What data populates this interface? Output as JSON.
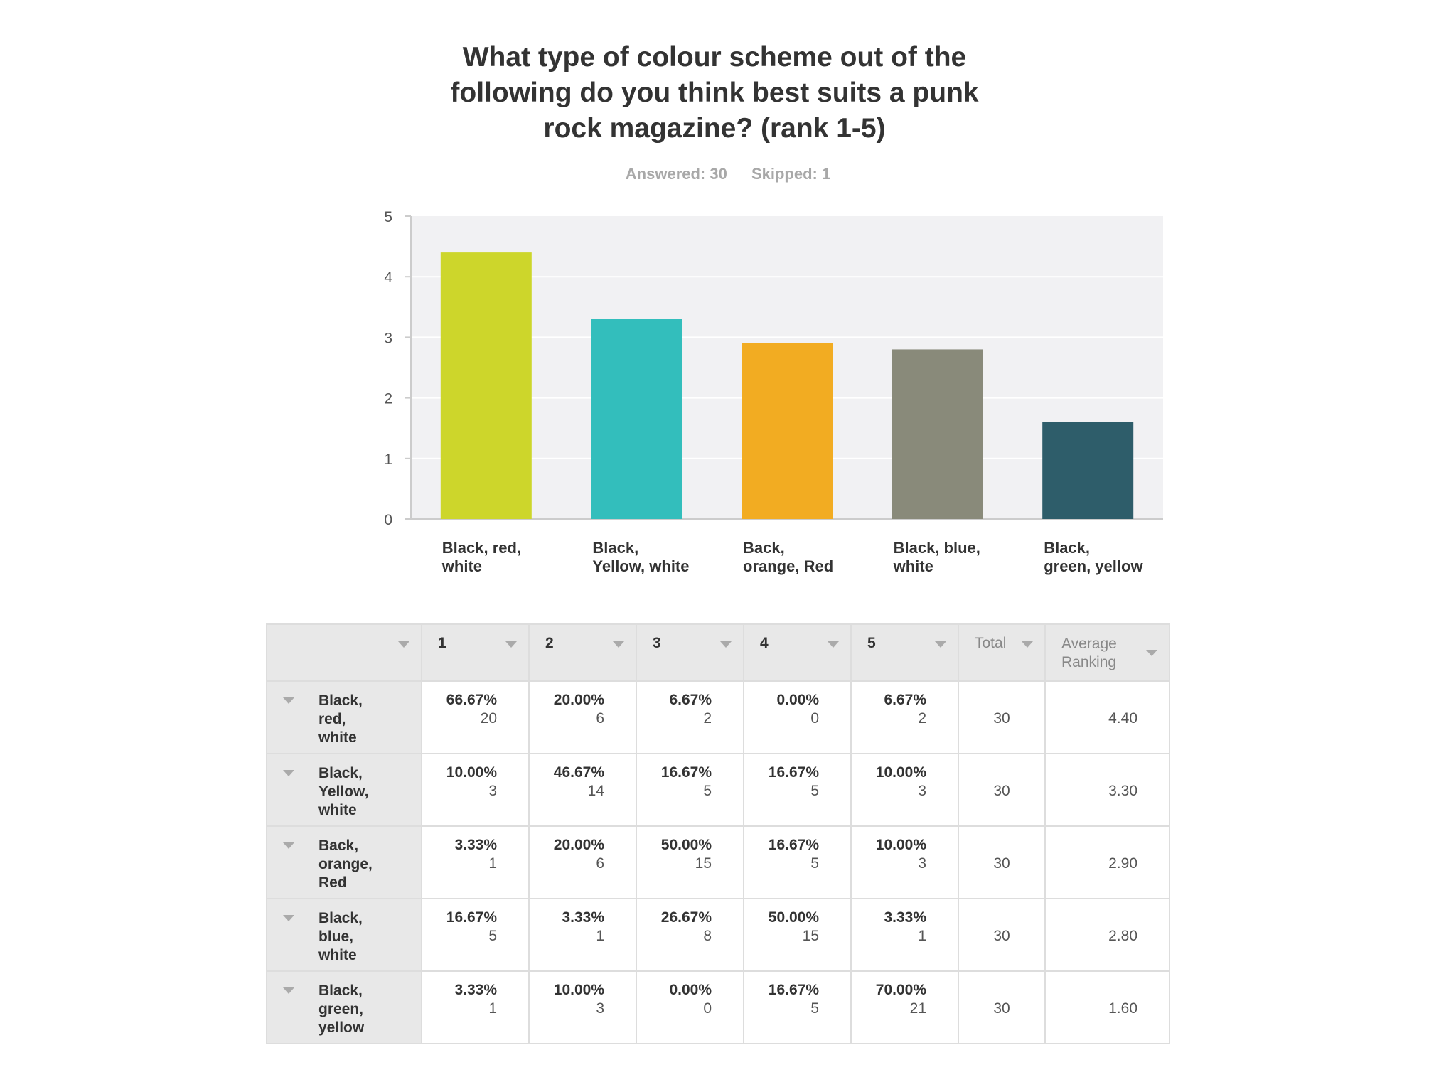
{
  "title_lines": [
    "What type of colour scheme out of the",
    "following do you think best suits a punk",
    "rock magazine? (rank 1-5)"
  ],
  "stats": {
    "answered": "Answered: 30",
    "skipped": "Skipped: 1"
  },
  "chart_data": {
    "type": "bar",
    "title": "What type of colour scheme out of the following do you think best suits a punk rock magazine? (rank 1-5)",
    "categories": [
      [
        "Black, red,",
        "white"
      ],
      [
        "Black,",
        "Yellow, white"
      ],
      [
        "Back,",
        "orange, Red"
      ],
      [
        "Black, blue,",
        "white"
      ],
      [
        "Black,",
        "green, yellow"
      ]
    ],
    "values": [
      4.4,
      3.3,
      2.9,
      2.8,
      1.6
    ],
    "colors": [
      "#cdd62b",
      "#33bebc",
      "#f2ac22",
      "#898a7a",
      "#2e5d6a"
    ],
    "ylim": [
      0,
      5
    ],
    "yticks": [
      0,
      1,
      2,
      3,
      4,
      5
    ],
    "grid": true,
    "xlabel": "",
    "ylabel": ""
  },
  "table": {
    "headers": [
      "1",
      "2",
      "3",
      "4",
      "5",
      "Total",
      "Average Ranking"
    ],
    "rows": [
      {
        "label": [
          "Black,",
          "red,",
          "white"
        ],
        "cells": [
          [
            "66.67%",
            "20"
          ],
          [
            "20.00%",
            "6"
          ],
          [
            "6.67%",
            "2"
          ],
          [
            "0.00%",
            "0"
          ],
          [
            "6.67%",
            "2"
          ]
        ],
        "total": "30",
        "avg": "4.40"
      },
      {
        "label": [
          "Black,",
          "Yellow,",
          "white"
        ],
        "cells": [
          [
            "10.00%",
            "3"
          ],
          [
            "46.67%",
            "14"
          ],
          [
            "16.67%",
            "5"
          ],
          [
            "16.67%",
            "5"
          ],
          [
            "10.00%",
            "3"
          ]
        ],
        "total": "30",
        "avg": "3.30"
      },
      {
        "label": [
          "Back,",
          "orange,",
          "Red"
        ],
        "cells": [
          [
            "3.33%",
            "1"
          ],
          [
            "20.00%",
            "6"
          ],
          [
            "50.00%",
            "15"
          ],
          [
            "16.67%",
            "5"
          ],
          [
            "10.00%",
            "3"
          ]
        ],
        "total": "30",
        "avg": "2.90"
      },
      {
        "label": [
          "Black,",
          "blue,",
          "white"
        ],
        "cells": [
          [
            "16.67%",
            "5"
          ],
          [
            "3.33%",
            "1"
          ],
          [
            "26.67%",
            "8"
          ],
          [
            "50.00%",
            "15"
          ],
          [
            "3.33%",
            "1"
          ]
        ],
        "total": "30",
        "avg": "2.80"
      },
      {
        "label": [
          "Black,",
          "green,",
          "yellow"
        ],
        "cells": [
          [
            "3.33%",
            "1"
          ],
          [
            "10.00%",
            "3"
          ],
          [
            "0.00%",
            "0"
          ],
          [
            "16.67%",
            "5"
          ],
          [
            "70.00%",
            "21"
          ]
        ],
        "total": "30",
        "avg": "1.60"
      }
    ]
  }
}
